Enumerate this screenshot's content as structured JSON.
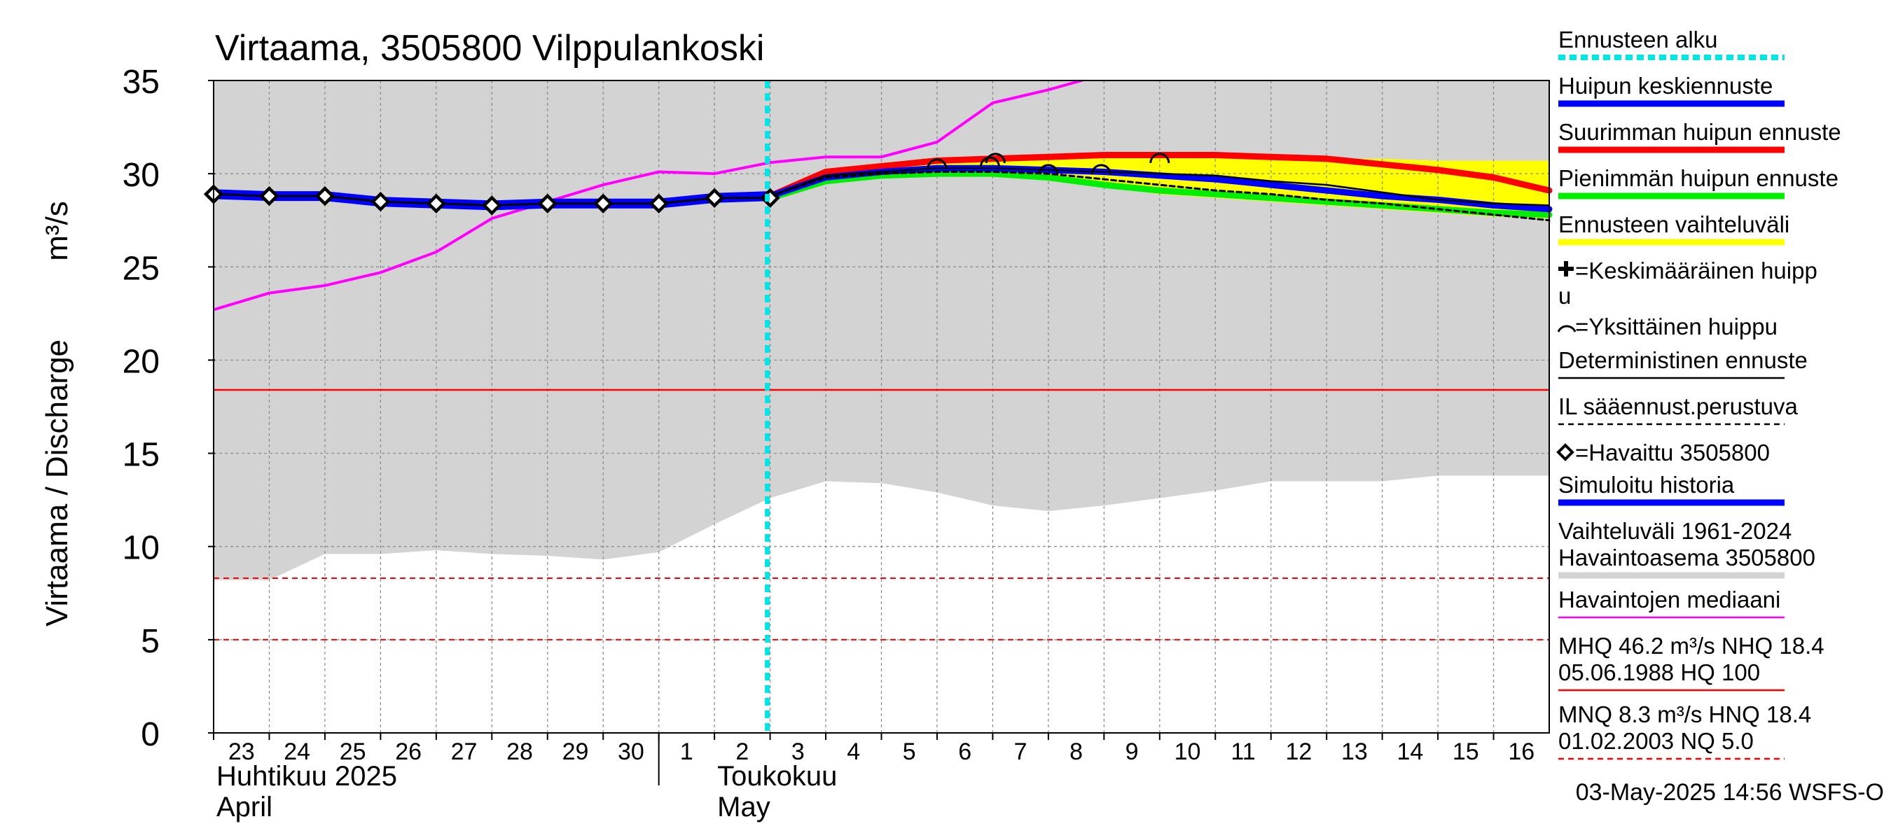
{
  "chart_data": {
    "type": "line",
    "title": "Virtaama, 3505800 Vilppulankoski",
    "ylabel": "Virtaama / Discharge",
    "ylabel_unit": "m³/s",
    "ylim": [
      0,
      35
    ],
    "y_ticks": [
      "0",
      "5",
      "10",
      "15",
      "20",
      "25",
      "30",
      "35"
    ],
    "x_day_range": [
      0,
      24
    ],
    "day_labels": [
      "23",
      "24",
      "25",
      "26",
      "27",
      "28",
      "29",
      "30",
      "1",
      "2",
      "3",
      "4",
      "5",
      "6",
      "7",
      "8",
      "9",
      "10",
      "11",
      "12",
      "13",
      "14",
      "15",
      "16"
    ],
    "month_labels": [
      {
        "line1": "Huhtikuu  2025",
        "line2": "April",
        "day": 0
      },
      {
        "line1": "Toukokuu",
        "line2": "May",
        "day": 9
      }
    ],
    "month_divider_day": 8,
    "forecast_start_day": 10,
    "reference_lines": {
      "nhq": 18.4,
      "mnq": 8.3,
      "nq": 5.0
    },
    "range_band": {
      "x": [
        0,
        1,
        2,
        3,
        4,
        5,
        6,
        7,
        8,
        9,
        10,
        11,
        12,
        13,
        14,
        15,
        16,
        17,
        18,
        19,
        20,
        21,
        22,
        23,
        24
      ],
      "upper": [
        35,
        35,
        35,
        35,
        35,
        35,
        35,
        35,
        35,
        35,
        35,
        35,
        35,
        35,
        35,
        35,
        35,
        35,
        35,
        35,
        35,
        35,
        35,
        35,
        35
      ],
      "lower": [
        8.2,
        8.2,
        9.6,
        9.6,
        9.8,
        9.6,
        9.5,
        9.3,
        9.7,
        11.2,
        12.6,
        13.5,
        13.4,
        12.9,
        12.2,
        11.9,
        12.2,
        12.6,
        13.0,
        13.5,
        13.5,
        13.5,
        13.8,
        13.8,
        13.8
      ]
    },
    "forecast_band": {
      "x": [
        10,
        11,
        12,
        13,
        14,
        15,
        16,
        17,
        18,
        19,
        20,
        21,
        22,
        23,
        24
      ],
      "upper": [
        28.9,
        30.1,
        30.4,
        30.7,
        30.9,
        30.9,
        31.0,
        31.0,
        30.9,
        30.8,
        30.8,
        30.8,
        30.7,
        30.7,
        30.7
      ],
      "lower": [
        28.7,
        29.5,
        29.8,
        30.0,
        30.0,
        29.7,
        29.3,
        28.9,
        28.7,
        28.5,
        28.3,
        28.1,
        27.9,
        27.7,
        27.6
      ]
    },
    "series": [
      {
        "name": "Havaintojen mediaani",
        "color": "#ff00ff",
        "x": [
          0,
          1,
          2,
          3,
          4,
          5,
          6,
          7,
          8,
          9,
          10,
          11,
          12,
          13,
          14,
          15,
          15.6
        ],
        "values": [
          22.7,
          23.6,
          24.0,
          24.7,
          25.8,
          27.6,
          28.5,
          29.4,
          30.1,
          30.0,
          30.6,
          30.9,
          30.9,
          31.7,
          33.8,
          34.5,
          35.0
        ]
      },
      {
        "name": "Suurimman huipun ennuste",
        "color": "#ff0000",
        "x": [
          10,
          11,
          12,
          13,
          14,
          15,
          16,
          17,
          18,
          19,
          20,
          21,
          22,
          23,
          24
        ],
        "values": [
          28.8,
          30.1,
          30.4,
          30.7,
          30.8,
          30.9,
          31.0,
          31.0,
          31.0,
          30.9,
          30.8,
          30.5,
          30.2,
          29.8,
          29.1
        ]
      },
      {
        "name": "Pienimmän huipun ennuste",
        "color": "#00ee00",
        "x": [
          10,
          11,
          12,
          13,
          14,
          15,
          16,
          17,
          18,
          19,
          20,
          21,
          22,
          23,
          24
        ],
        "values": [
          28.7,
          29.6,
          29.9,
          30.0,
          30.0,
          29.8,
          29.4,
          29.1,
          28.9,
          28.7,
          28.5,
          28.3,
          28.1,
          27.9,
          27.8
        ]
      },
      {
        "name": "Simuloitu historia",
        "color": "#0000ff",
        "x": [
          0,
          1,
          2,
          3,
          4,
          5,
          6,
          7,
          8,
          9,
          10
        ],
        "values": [
          28.9,
          28.8,
          28.8,
          28.5,
          28.4,
          28.3,
          28.4,
          28.4,
          28.4,
          28.7,
          28.8
        ]
      },
      {
        "name": "Huipun keskiennuste",
        "color": "#0000ff",
        "x": [
          10,
          11,
          12,
          13,
          14,
          15,
          16,
          17,
          18,
          19,
          20,
          21,
          22,
          23,
          24
        ],
        "values": [
          28.8,
          29.8,
          30.1,
          30.3,
          30.3,
          30.2,
          30.1,
          29.9,
          29.7,
          29.4,
          29.1,
          28.8,
          28.6,
          28.3,
          28.1
        ]
      },
      {
        "name": "Deterministinen ennuste",
        "color": "#000000",
        "x": [
          10,
          11,
          12,
          13,
          14,
          15,
          16,
          17,
          18,
          19,
          20,
          21,
          22,
          23,
          24
        ],
        "values": [
          28.8,
          29.9,
          30.1,
          30.3,
          30.3,
          30.2,
          30.1,
          30.0,
          29.9,
          29.6,
          29.4,
          29.0,
          28.6,
          28.4,
          28.3
        ]
      },
      {
        "name": "IL sääennust.perustuva",
        "color": "#000000",
        "x": [
          10,
          11,
          12,
          13,
          14,
          15,
          16,
          17,
          18,
          19,
          20,
          21,
          22,
          23,
          24
        ],
        "values": [
          28.8,
          29.8,
          30.0,
          30.1,
          30.1,
          30.0,
          29.7,
          29.4,
          29.1,
          28.9,
          28.6,
          28.4,
          28.1,
          27.8,
          27.5
        ]
      }
    ],
    "observed": {
      "name": "Havaittu 3505800",
      "x": [
        0,
        1,
        2,
        3,
        4,
        5,
        6,
        7,
        8,
        9,
        10
      ],
      "values": [
        28.9,
        28.8,
        28.8,
        28.5,
        28.4,
        28.3,
        28.4,
        28.4,
        28.4,
        28.7,
        28.7
      ]
    },
    "single_peaks": {
      "x": [
        13.0,
        13.95,
        14.05,
        15.0,
        15.95,
        17.0
      ],
      "values": [
        30.5,
        30.6,
        30.8,
        30.2,
        30.2,
        30.8
      ]
    },
    "legend_position": "right",
    "legend": [
      {
        "text": "Ennusteen alku",
        "line": "#00e5e5",
        "style": "dotted"
      },
      {
        "text": "Huipun keskiennuste",
        "line": "#0000ff",
        "style": "thick"
      },
      {
        "text": "Suurimman huipun ennuste",
        "line": "#ff0000",
        "style": "thick"
      },
      {
        "text": "Pienimmän huipun ennuste",
        "line": "#00ee00",
        "style": "thick"
      },
      {
        "text": "Ennusteen vaihteluväli",
        "line": "#ffff00",
        "style": "thick"
      },
      {
        "text": "=Keskimääräinen huipp",
        "text2": "u",
        "line": "",
        "style": "plus"
      },
      {
        "text": "=Yksittäinen huippu",
        "line": "",
        "style": "arc"
      },
      {
        "text": "Deterministinen ennuste",
        "line": "#000000",
        "style": "thin"
      },
      {
        "text": "IL sääennust.perustuva",
        "line": "#000000",
        "style": "dashed"
      },
      {
        "text": "=Havaittu 3505800",
        "line": "",
        "style": "diamond"
      },
      {
        "text": "Simuloitu historia",
        "line": "#0000ff",
        "style": "thick"
      },
      {
        "text": "Vaihteluväli 1961-2024",
        "text2": " Havaintoasema 3505800",
        "line": "#d3d3d3",
        "style": "thick"
      },
      {
        "text": "Havaintojen mediaani",
        "line": "#ff00ff",
        "style": "thin"
      },
      {
        "text": "MHQ 46.2 m³/s NHQ 18.4",
        "text2": "05.06.1988 HQ  100",
        "line": "#ff0000",
        "style": "thin"
      },
      {
        "text": "MNQ  8.3 m³/s HNQ 18.4",
        "text2": "01.02.2003 NQ  5.0",
        "line": "#ff0000",
        "style": "dashed"
      }
    ],
    "footer": "03-May-2025 14:56 WSFS-O"
  }
}
